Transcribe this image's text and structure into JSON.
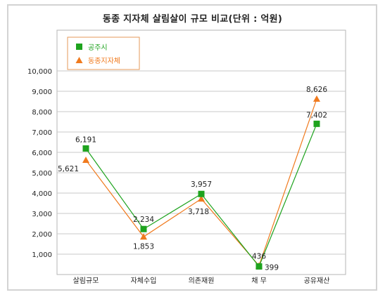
{
  "chart_data": {
    "type": "line",
    "title": "동종 지자체 살림살이 규모 비교(단위 : 억원)",
    "categories": [
      "살림규모",
      "자체수입",
      "의존재원",
      "채 무",
      "공유재산"
    ],
    "series": [
      {
        "name": "공주시",
        "values": [
          6191,
          2234,
          3957,
          399,
          7402
        ],
        "color": "#1ea31e",
        "marker": "square",
        "labels": [
          "6,191",
          "2,234",
          "3,957",
          "399",
          "7,402"
        ]
      },
      {
        "name": "동종지자체",
        "values": [
          5621,
          1853,
          3718,
          436,
          8626
        ],
        "color": "#f07a1e",
        "marker": "triangle",
        "labels": [
          "5,621",
          "1,853",
          "3,718",
          "436",
          "8,626"
        ]
      }
    ],
    "y_ticks": [
      "1,000",
      "2,000",
      "3,000",
      "4,000",
      "5,000",
      "6,000",
      "7,000",
      "8,000",
      "9,000",
      "10,000"
    ],
    "ylim": [
      0,
      12000
    ],
    "grid": true,
    "legend": "top-left"
  }
}
